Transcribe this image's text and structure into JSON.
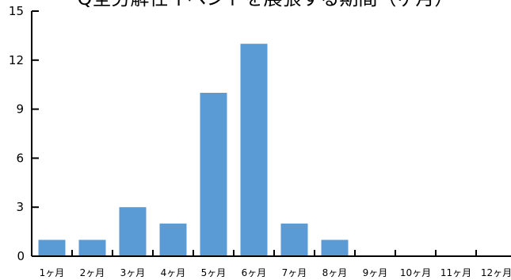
{
  "chart_data": {
    "type": "bar",
    "title": "Q全労解任イベントを展張する期間（ヶ月）",
    "categories": [
      "1ヶ月",
      "2ヶ月",
      "3ヶ月",
      "4ヶ月",
      "5ヶ月",
      "6ヶ月",
      "7ヶ月",
      "8ヶ月",
      "9ヶ月",
      "10ヶ月",
      "11ヶ月",
      "12ヶ月"
    ],
    "values": [
      1,
      1,
      3,
      2,
      10,
      13,
      2,
      1,
      0,
      0,
      0,
      0
    ],
    "y_ticks": [
      0,
      3,
      6,
      9,
      12,
      15
    ],
    "ylim": [
      0,
      15
    ],
    "bar_color": "#5b9bd5",
    "grid": false,
    "legend": "none",
    "xlabel": "",
    "ylabel": ""
  }
}
